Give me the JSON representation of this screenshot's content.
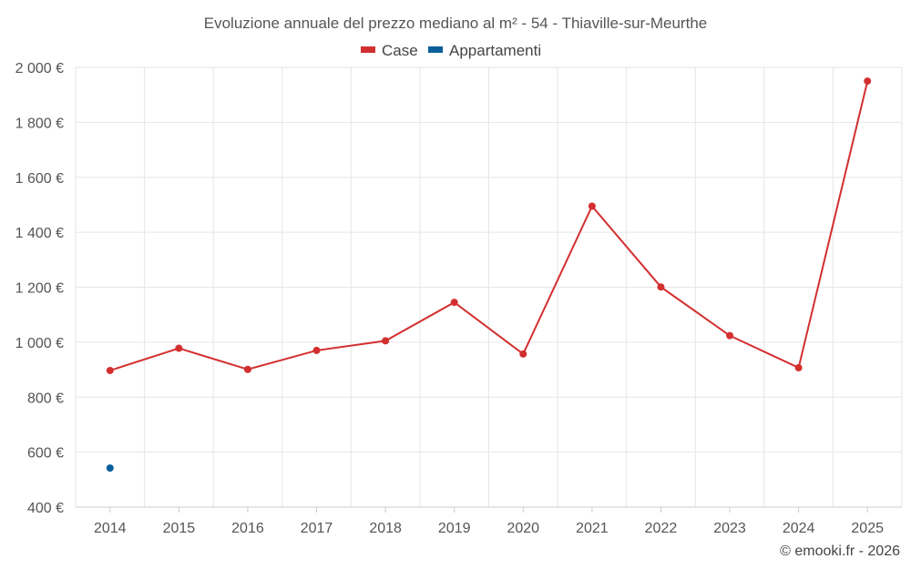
{
  "chart_data": {
    "type": "line",
    "title": "Evoluzione annuale del prezzo mediano al m² - 54 - Thiaville-sur-Meurthe",
    "categories": [
      "2014",
      "2015",
      "2016",
      "2017",
      "2018",
      "2019",
      "2020",
      "2021",
      "2022",
      "2023",
      "2024",
      "2025"
    ],
    "series": [
      {
        "name": "Case",
        "color": "#d32f2f",
        "values": [
          897,
          978,
          901,
          970,
          1005,
          1145,
          957,
          1495,
          1201,
          1024,
          907,
          1950
        ]
      },
      {
        "name": "Appartamenti",
        "color": "#0a5f9a",
        "values": [
          542,
          null,
          null,
          null,
          null,
          null,
          null,
          null,
          null,
          null,
          null,
          null
        ]
      }
    ],
    "y_ticks": [
      "400 €",
      "600 €",
      "800 €",
      "1 000 €",
      "1 200 €",
      "1 400 €",
      "1 600 €",
      "1 800 €",
      "2 000 €"
    ],
    "y_tick_values": [
      400,
      600,
      800,
      1000,
      1200,
      1400,
      1600,
      1800,
      2000
    ],
    "ylim": [
      400,
      2000
    ],
    "xlabel": "",
    "ylabel": "",
    "grid": true,
    "legend_position": "top-center"
  },
  "credit": "© emooki.fr - 2026"
}
